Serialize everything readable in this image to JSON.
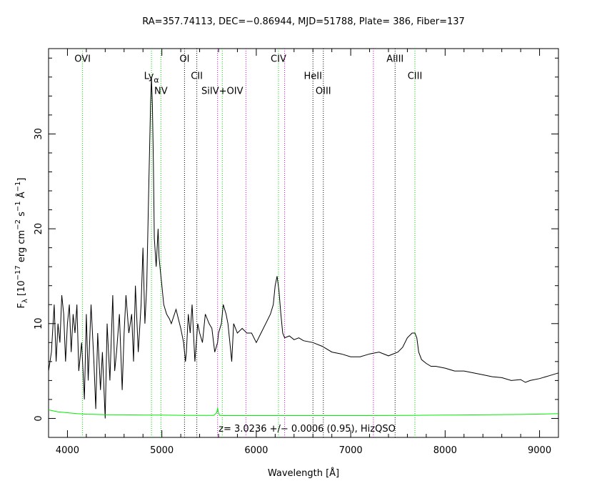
{
  "chart_data": {
    "type": "line",
    "title": "RA=357.74113, DEC=−0.86944, MJD=51788, Plate= 386, Fiber=137",
    "xlabel": "Wavelength [Å]",
    "ylabel_parts": {
      "f": "F",
      "f_sub": "λ",
      "open": " [10",
      "exp1": "−17",
      "mid": " erg cm",
      "exp2": "−2",
      "s": " s",
      "exp3": "−1",
      "ang": " Å",
      "exp4": "−1",
      "close": "]"
    },
    "xlim": [
      3800,
      9200
    ],
    "ylim": [
      -2,
      39
    ],
    "xticks": [
      4000,
      5000,
      6000,
      7000,
      8000,
      9000
    ],
    "yticks": [
      0,
      10,
      20,
      30
    ],
    "annotation": "z= 3.0236 +/− 0.0006 (0.95), HizQSO",
    "series": [
      {
        "role": "flux",
        "color": "#000000",
        "x": [
          3800,
          3830,
          3860,
          3880,
          3900,
          3920,
          3940,
          3960,
          3980,
          4000,
          4020,
          4040,
          4060,
          4080,
          4100,
          4120,
          4150,
          4180,
          4200,
          4220,
          4250,
          4280,
          4300,
          4320,
          4350,
          4370,
          4400,
          4420,
          4450,
          4480,
          4500,
          4520,
          4550,
          4580,
          4600,
          4620,
          4650,
          4680,
          4700,
          4720,
          4750,
          4780,
          4800,
          4820,
          4840,
          4860,
          4880,
          4890,
          4900,
          4910,
          4920,
          4940,
          4960,
          4970,
          4980,
          4990,
          5000,
          5010,
          5020,
          5050,
          5080,
          5100,
          5150,
          5200,
          5230,
          5250,
          5260,
          5280,
          5300,
          5320,
          5350,
          5380,
          5400,
          5430,
          5460,
          5500,
          5530,
          5560,
          5590,
          5600,
          5630,
          5650,
          5680,
          5700,
          5720,
          5740,
          5760,
          5800,
          5850,
          5900,
          5950,
          6000,
          6050,
          6100,
          6150,
          6180,
          6200,
          6220,
          6240,
          6260,
          6280,
          6300,
          6350,
          6400,
          6450,
          6500,
          6600,
          6700,
          6800,
          6900,
          7000,
          7100,
          7200,
          7300,
          7400,
          7500,
          7550,
          7600,
          7650,
          7680,
          7700,
          7720,
          7750,
          7800,
          7850,
          7900,
          8000,
          8100,
          8200,
          8300,
          8400,
          8500,
          8600,
          8700,
          8800,
          8850,
          8900,
          9000,
          9100,
          9200
        ],
        "y": [
          5,
          7,
          12,
          6,
          10,
          8,
          13,
          11,
          6,
          10,
          12,
          7,
          11,
          9,
          12,
          5,
          8,
          2,
          11,
          4,
          12,
          6,
          1,
          9,
          3,
          7,
          0,
          10,
          4,
          13,
          5,
          7,
          11,
          3,
          9,
          13,
          9,
          11,
          6,
          14,
          7,
          12,
          18,
          10,
          14,
          24,
          33,
          36,
          33,
          27,
          19,
          16,
          20,
          17,
          16,
          15,
          14,
          13,
          12,
          11,
          10.5,
          10,
          11.5,
          9.5,
          8,
          6,
          7,
          11,
          9,
          12,
          6,
          10,
          9,
          8,
          11,
          10,
          9.5,
          7,
          8,
          9,
          10,
          12,
          11,
          10,
          8,
          6,
          10,
          9,
          9.5,
          9,
          9,
          8,
          9,
          10,
          11,
          12,
          14,
          15,
          13.5,
          11,
          9,
          8.5,
          8.7,
          8.3,
          8.5,
          8.2,
          8,
          7.6,
          7,
          6.8,
          6.5,
          6.5,
          6.8,
          7,
          6.6,
          7,
          7.5,
          8.5,
          9,
          9,
          8.5,
          7,
          6.2,
          5.8,
          5.5,
          5.5,
          5.3,
          5,
          5,
          4.8,
          4.6,
          4.4,
          4.3,
          4,
          4.1,
          3.8,
          4,
          4.2,
          4.5,
          4.8
        ]
      },
      {
        "role": "error",
        "color": "#00ee00",
        "x": [
          3800,
          3900,
          4000,
          4100,
          4200,
          4400,
          4600,
          4800,
          5000,
          5200,
          5400,
          5550,
          5580,
          5590,
          5600,
          5610,
          5620,
          5650,
          5800,
          6000,
          6400,
          6800,
          7200,
          7600,
          8000,
          8400,
          8800,
          9200
        ],
        "y": [
          0.9,
          0.7,
          0.6,
          0.5,
          0.45,
          0.4,
          0.38,
          0.36,
          0.35,
          0.33,
          0.32,
          0.32,
          0.6,
          1.1,
          0.6,
          0.33,
          0.32,
          0.3,
          0.3,
          0.3,
          0.3,
          0.3,
          0.3,
          0.32,
          0.35,
          0.38,
          0.42,
          0.5
        ]
      }
    ],
    "lines": [
      {
        "label": "OVI",
        "x": 4160,
        "color": "#00dd00",
        "label_y": 37.6
      },
      {
        "label": "Ly",
        "sub": "α",
        "x": 4890,
        "color": "#00dd00",
        "label_y": 35.8
      },
      {
        "label": "NV",
        "x": 4990,
        "color": "#00dd00",
        "label_y": 34.2
      },
      {
        "label": "OI",
        "x": 5240,
        "color": "#000000",
        "label_y": 37.6
      },
      {
        "label": "CII",
        "x": 5370,
        "color": "#000000",
        "label_y": 35.8
      },
      {
        "label": "",
        "x": 5590,
        "color": "#dd00dd",
        "label_y": 0
      },
      {
        "label": "SiIV+OIV",
        "x": 5640,
        "color": "#00dd00",
        "label_y": 34.2
      },
      {
        "label": "",
        "x": 5890,
        "color": "#dd00dd",
        "label_y": 0
      },
      {
        "label": "CIV",
        "x": 6235,
        "color": "#00dd00",
        "label_y": 37.6
      },
      {
        "label": "",
        "x": 6300,
        "color": "#dd00dd",
        "label_y": 0
      },
      {
        "label": "HeII",
        "x": 6600,
        "color": "#000000",
        "label_y": 35.8
      },
      {
        "label": "OIII",
        "x": 6710,
        "color": "#000000",
        "label_y": 34.2
      },
      {
        "label": "",
        "x": 7240,
        "color": "#dd00dd",
        "label_y": 0
      },
      {
        "label": "AlIII",
        "x": 7470,
        "color": "#000000",
        "label_y": 37.6
      },
      {
        "label": "CIII",
        "x": 7680,
        "color": "#00dd00",
        "label_y": 35.8
      }
    ]
  }
}
